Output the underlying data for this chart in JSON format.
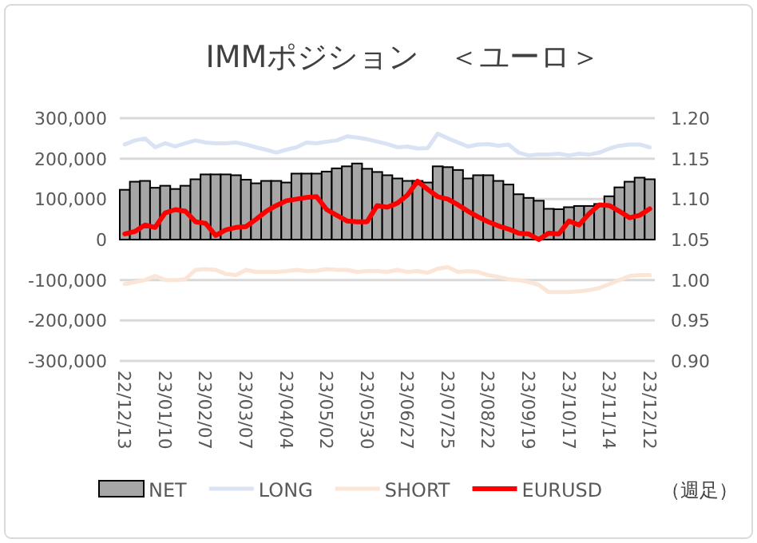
{
  "chart_data": {
    "type": "bar",
    "title": "IMMポジション　＜ユーロ＞",
    "categories": [
      "22/12/13",
      null,
      null,
      null,
      "23/01/10",
      null,
      null,
      null,
      "23/02/07",
      null,
      null,
      null,
      "23/03/07",
      null,
      null,
      null,
      "23/04/04",
      null,
      null,
      null,
      "23/05/02",
      null,
      null,
      null,
      "23/05/30",
      null,
      null,
      null,
      "23/06/27",
      null,
      null,
      null,
      "23/07/25",
      null,
      null,
      null,
      "23/08/22",
      null,
      null,
      null,
      "23/09/19",
      null,
      null,
      null,
      "23/10/17",
      null,
      null,
      null,
      "23/11/14",
      null,
      null,
      null,
      "23/12/12"
    ],
    "series": [
      {
        "name": "NET",
        "color": "#a6a6a6",
        "values": [
          123000,
          143000,
          145000,
          128000,
          133000,
          125000,
          133000,
          149000,
          161000,
          161000,
          161000,
          159000,
          148000,
          139000,
          145000,
          145000,
          141000,
          163000,
          163000,
          163000,
          168000,
          176000,
          181000,
          188000,
          175000,
          167000,
          159000,
          151000,
          145000,
          145000,
          141000,
          181000,
          179000,
          172000,
          151000,
          159000,
          159000,
          145000,
          136000,
          112000,
          103000,
          96000,
          76000,
          75000,
          80000,
          83000,
          83000,
          88000,
          107000,
          129000,
          143000,
          153000,
          149000
        ]
      },
      {
        "name": "LONG",
        "type": "line",
        "color": "#dae3f3",
        "values": [
          235000,
          245000,
          250000,
          228000,
          238000,
          230000,
          238000,
          245000,
          240000,
          238000,
          238000,
          240000,
          235000,
          228000,
          222000,
          215000,
          222000,
          228000,
          240000,
          238000,
          242000,
          245000,
          255000,
          252000,
          248000,
          242000,
          236000,
          228000,
          230000,
          225000,
          226000,
          262000,
          250000,
          240000,
          230000,
          235000,
          236000,
          232000,
          235000,
          215000,
          208000,
          210000,
          210000,
          212000,
          208000,
          212000,
          210000,
          215000,
          225000,
          232000,
          235000,
          235000,
          228000
        ]
      },
      {
        "name": "SHORT",
        "type": "line",
        "color": "#fbe5d6",
        "values": [
          -110000,
          -105000,
          -100000,
          -90000,
          -100000,
          -100000,
          -98000,
          -75000,
          -73000,
          -75000,
          -85000,
          -88000,
          -75000,
          -80000,
          -80000,
          -80000,
          -78000,
          -75000,
          -78000,
          -77000,
          -73000,
          -75000,
          -75000,
          -80000,
          -78000,
          -78000,
          -80000,
          -75000,
          -80000,
          -78000,
          -82000,
          -72000,
          -68000,
          -80000,
          -78000,
          -80000,
          -88000,
          -92000,
          -98000,
          -100000,
          -105000,
          -112000,
          -130000,
          -130000,
          -130000,
          -128000,
          -125000,
          -120000,
          -110000,
          -100000,
          -90000,
          -88000,
          -88000
        ]
      },
      {
        "name": "EURUSD",
        "type": "line",
        "axis": "y2",
        "color": "#ff0000",
        "values": [
          1.057,
          1.06,
          1.068,
          1.065,
          1.083,
          1.087,
          1.085,
          1.072,
          1.07,
          1.055,
          1.062,
          1.065,
          1.066,
          1.075,
          1.085,
          1.092,
          1.098,
          1.1,
          1.102,
          1.103,
          1.087,
          1.08,
          1.073,
          1.072,
          1.072,
          1.092,
          1.09,
          1.095,
          1.105,
          1.122,
          1.112,
          1.103,
          1.1,
          1.093,
          1.085,
          1.078,
          1.072,
          1.067,
          1.063,
          1.058,
          1.057,
          1.05,
          1.058,
          1.057,
          1.073,
          1.068,
          1.082,
          1.093,
          1.092,
          1.085,
          1.077,
          1.08,
          1.088
        ]
      }
    ],
    "ylim": [
      -300000,
      300000
    ],
    "yticks": [
      {
        "value": -300000,
        "label": "-300,000"
      },
      {
        "value": -200000,
        "label": "-200,000"
      },
      {
        "value": -100000,
        "label": "-100,000"
      },
      0,
      {
        "value": 100000,
        "label": "100,000"
      },
      {
        "value": 200000,
        "label": "200,000"
      },
      {
        "value": 300000,
        "label": "300,000"
      }
    ],
    "y2lim": [
      0.9,
      1.2
    ],
    "y2ticks": [
      {
        "value": 0.9,
        "label": "0.90"
      },
      {
        "value": 0.95,
        "label": "0.95"
      },
      {
        "value": 1.0,
        "label": "1.00"
      },
      {
        "value": 1.05,
        "label": "1.05"
      },
      {
        "value": 1.1,
        "label": "1.10"
      },
      {
        "value": 1.15,
        "label": "1.15"
      },
      {
        "value": 1.2,
        "label": "1.20"
      }
    ],
    "grid": "y",
    "legend": "bottom",
    "annotations": [
      "（週足）"
    ]
  }
}
